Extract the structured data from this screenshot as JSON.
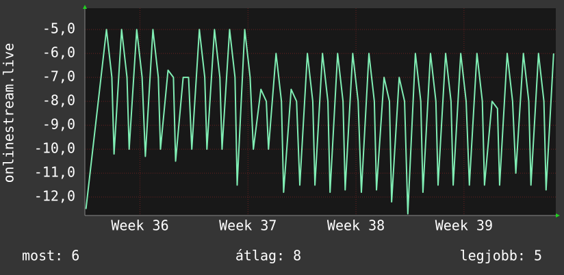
{
  "chart_data": {
    "type": "line",
    "y_label": "onlinestream.live",
    "x": [
      35.5,
      35.69,
      35.74,
      35.76,
      35.83,
      35.88,
      35.9,
      35.97,
      36.02,
      36.05,
      36.12,
      36.17,
      36.19,
      36.26,
      36.31,
      36.33,
      36.4,
      36.45,
      36.48,
      36.55,
      36.6,
      36.62,
      36.69,
      36.74,
      36.76,
      36.83,
      36.88,
      36.9,
      36.97,
      37.02,
      37.05,
      37.12,
      37.17,
      37.19,
      37.26,
      37.31,
      37.33,
      37.4,
      37.45,
      37.48,
      37.55,
      37.6,
      37.62,
      37.69,
      37.74,
      37.76,
      37.83,
      37.88,
      37.9,
      37.97,
      38.02,
      38.05,
      38.12,
      38.17,
      38.19,
      38.26,
      38.31,
      38.33,
      38.4,
      38.45,
      38.48,
      38.55,
      38.6,
      38.62,
      38.69,
      38.74,
      38.76,
      38.83,
      38.88,
      38.9,
      38.97,
      39.02,
      39.05,
      39.12,
      39.17,
      39.19,
      39.26,
      39.31,
      39.33,
      39.4,
      39.45,
      39.48,
      39.55,
      39.6,
      39.62,
      39.69,
      39.74,
      39.76,
      39.83
    ],
    "series": [
      {
        "color": "#80eeb4",
        "values": [
          -12.5,
          -5,
          -7,
          -10.2,
          -5,
          -7,
          -10,
          -5,
          -7,
          -10.3,
          -5,
          -7,
          -10,
          -6.7,
          -7,
          -10.5,
          -7,
          -7,
          -10,
          -5,
          -7,
          -10,
          -5,
          -7,
          -10,
          -5,
          -7,
          -11.5,
          -5,
          -7,
          -10,
          -7.5,
          -8,
          -10,
          -6,
          -8,
          -11.8,
          -7.5,
          -8,
          -11.5,
          -6,
          -8,
          -11.5,
          -6,
          -8,
          -11.8,
          -6,
          -8,
          -11.7,
          -6,
          -8,
          -11.8,
          -6,
          -8,
          -11.7,
          -7,
          -8,
          -12.2,
          -7,
          -8,
          -12.7,
          -6,
          -8,
          -11.8,
          -6,
          -8,
          -11.5,
          -6,
          -8,
          -11.5,
          -6,
          -8,
          -11.5,
          -6,
          -8,
          -11.5,
          -8,
          -8.3,
          -11.5,
          -6,
          -8,
          -11,
          -6,
          -8,
          -11.5,
          -6,
          -8,
          -11.7,
          -6
        ]
      }
    ],
    "xlim": [
      35.49,
      39.85
    ],
    "xticks": [
      {
        "value": 36,
        "label": "Week 36"
      },
      {
        "value": 37,
        "label": "Week 37"
      },
      {
        "value": 38,
        "label": "Week 38"
      },
      {
        "value": 39,
        "label": "Week 39"
      }
    ],
    "ylim": [
      -12.77,
      -4.11
    ],
    "yticks": [
      {
        "value": -5,
        "label": "-5,0"
      },
      {
        "value": -6,
        "label": "-6,0"
      },
      {
        "value": -7,
        "label": "-7,0"
      },
      {
        "value": -8,
        "label": "-8,0"
      },
      {
        "value": -9,
        "label": "-9,0"
      },
      {
        "value": -10,
        "label": "-10,0"
      },
      {
        "value": -11,
        "label": "-11,0"
      },
      {
        "value": -12,
        "label": "-12,0"
      }
    ],
    "grid": true,
    "stats": [
      "most: 6",
      "átlag: 8",
      "legjobb: 5"
    ]
  }
}
